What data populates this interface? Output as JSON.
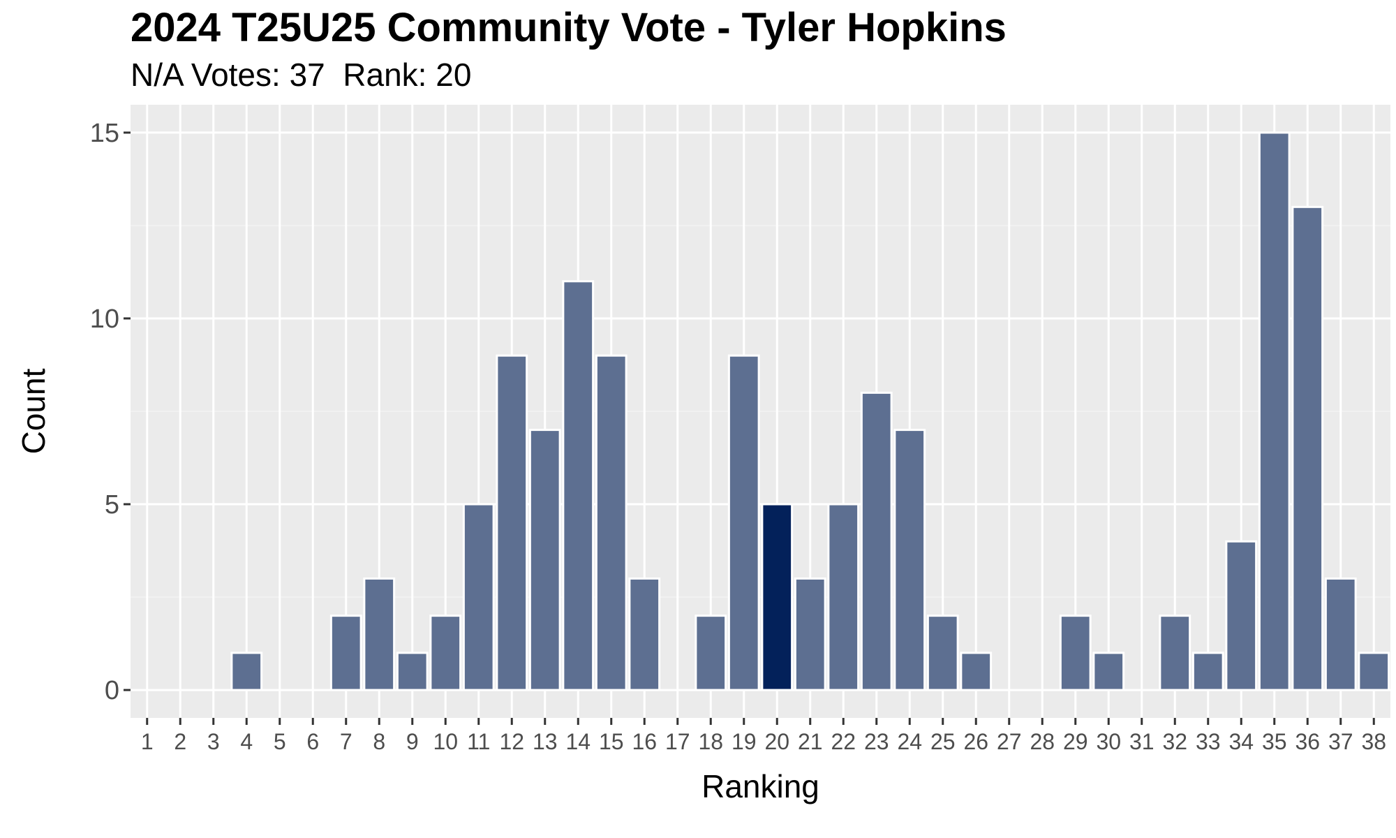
{
  "chart_data": {
    "type": "bar",
    "title": "2024 T25U25 Community Vote - Tyler Hopkins",
    "subtitle": "N/A Votes: 37  Rank: 20",
    "xlabel": "Ranking",
    "ylabel": "Count",
    "categories": [
      "1",
      "2",
      "3",
      "4",
      "5",
      "6",
      "7",
      "8",
      "9",
      "10",
      "11",
      "12",
      "13",
      "14",
      "15",
      "16",
      "17",
      "18",
      "19",
      "20",
      "21",
      "22",
      "23",
      "24",
      "25",
      "26",
      "27",
      "28",
      "29",
      "30",
      "31",
      "32",
      "33",
      "34",
      "35",
      "36",
      "37",
      "38"
    ],
    "values": [
      0,
      0,
      0,
      1,
      0,
      0,
      2,
      3,
      1,
      2,
      5,
      9,
      7,
      11,
      9,
      3,
      0,
      2,
      9,
      5,
      3,
      5,
      8,
      7,
      2,
      1,
      0,
      0,
      2,
      1,
      0,
      2,
      1,
      4,
      15,
      13,
      3,
      1
    ],
    "highlight_category": "20",
    "yticks": [
      0,
      5,
      10,
      15
    ],
    "ylim": [
      -0.75,
      15.75
    ],
    "grid": true,
    "colors": {
      "bar": "#5d6f91",
      "highlight_bar": "#03215a",
      "bar_outline": "#ffffff",
      "panel_background": "#ebebeb",
      "grid_major": "#ffffff",
      "grid_minor": "#f3f3f3"
    }
  }
}
